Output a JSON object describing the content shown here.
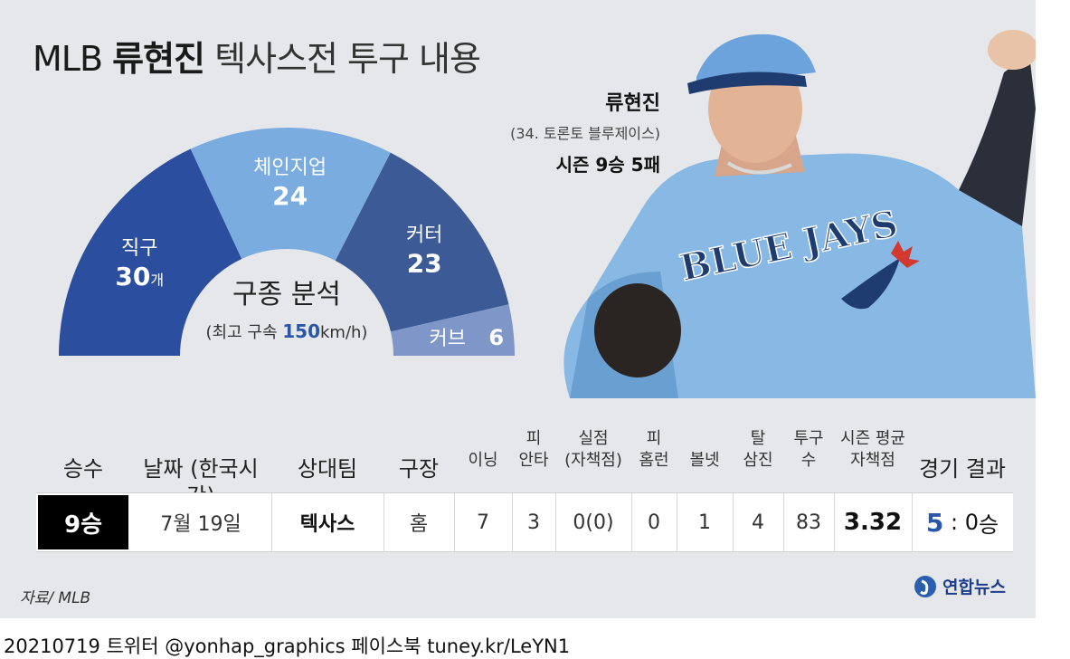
{
  "title": {
    "prefix": "MLB",
    "name": "류현진",
    "rest": "텍사스전 투구 내용"
  },
  "chart_data": {
    "type": "pie",
    "title": "구종 분석",
    "subtitle_prefix": "(최고 구속 ",
    "subtitle_value": "150",
    "subtitle_suffix": "km/h)",
    "categories": [
      "직구",
      "체인지업",
      "커터",
      "커브"
    ],
    "values": [
      30,
      24,
      23,
      6
    ],
    "value_labels": [
      "30",
      "24",
      "23",
      "6"
    ],
    "unit": "개",
    "colors": [
      "#2b4f9e",
      "#7aace0",
      "#3c5a96",
      "#7f97c8"
    ]
  },
  "player": {
    "name": "류현진",
    "team": "(34. 토론토 블루제이스)",
    "record": "시즌 9승 5패",
    "jersey_text": "BLUE JAYS"
  },
  "table": {
    "headers": [
      {
        "l1": "",
        "l2": "승수",
        "big": true
      },
      {
        "l1": "",
        "l2": "날짜 (한국시간)",
        "big": true
      },
      {
        "l1": "",
        "l2": "상대팀",
        "big": true
      },
      {
        "l1": "",
        "l2": "구장",
        "big": true
      },
      {
        "l1": "",
        "l2": "이닝",
        "big": false
      },
      {
        "l1": "피",
        "l2": "안타",
        "big": false
      },
      {
        "l1": "실점",
        "l2": "(자책점)",
        "big": false
      },
      {
        "l1": "피",
        "l2": "홈런",
        "big": false
      },
      {
        "l1": "",
        "l2": "볼넷",
        "big": false
      },
      {
        "l1": "탈",
        "l2": "삼진",
        "big": false
      },
      {
        "l1": "투구",
        "l2": "수",
        "big": false
      },
      {
        "l1": "시즌 평균",
        "l2": "자책점",
        "big": false
      },
      {
        "l1": "",
        "l2": "경기 결과",
        "big": true
      }
    ],
    "row": {
      "win": "9승",
      "date": "7월 19일",
      "opponent": "텍사스",
      "venue": "홈",
      "innings": "7",
      "hits": "3",
      "runs": "0(0)",
      "hr": "0",
      "bb": "1",
      "so": "4",
      "pitches": "83",
      "era": "3.32",
      "score_team": "5",
      "score_sep": " : ",
      "score_opp": "0",
      "result": "승"
    }
  },
  "source": "자료/ MLB",
  "logo": "연합뉴스",
  "footer": "20210719 트위터 @yonhap_graphics  페이스북 tuney.kr/LeYN1"
}
